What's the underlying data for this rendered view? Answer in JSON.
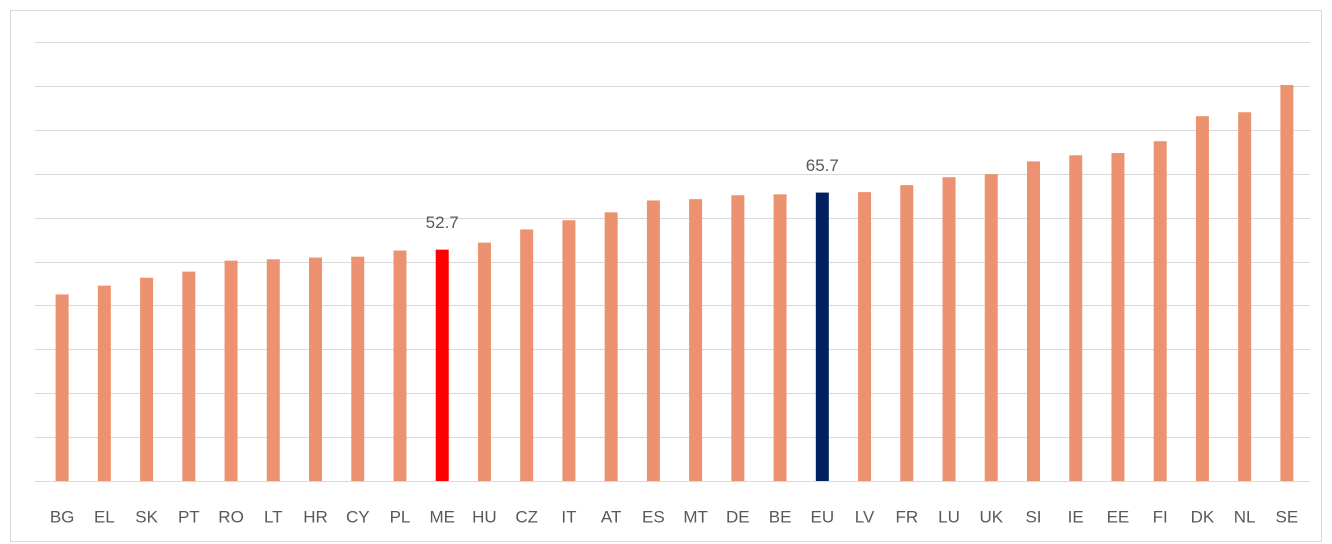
{
  "chart_data": {
    "type": "bar",
    "categories": [
      "BG",
      "EL",
      "SK",
      "PT",
      "RO",
      "LT",
      "HR",
      "CY",
      "PL",
      "ME",
      "HU",
      "CZ",
      "IT",
      "AT",
      "ES",
      "MT",
      "DE",
      "BE",
      "EU",
      "LV",
      "FR",
      "LU",
      "UK",
      "SI",
      "IE",
      "EE",
      "FI",
      "DK",
      "NL",
      "SE"
    ],
    "values": [
      42.5,
      44.5,
      46.3,
      47.7,
      50.2,
      50.5,
      50.9,
      51.1,
      52.5,
      52.7,
      54.3,
      57.3,
      59.4,
      61.2,
      63.9,
      64.2,
      65.1,
      65.3,
      65.7,
      65.8,
      67.4,
      69.2,
      69.9,
      72.8,
      74.2,
      74.7,
      77.4,
      83.1,
      84.0,
      90.2
    ],
    "value_labels": [
      null,
      null,
      null,
      null,
      null,
      null,
      null,
      null,
      null,
      "52.7",
      null,
      null,
      null,
      null,
      null,
      null,
      null,
      null,
      "65.7",
      null,
      null,
      null,
      null,
      null,
      null,
      null,
      null,
      null,
      null,
      null
    ],
    "colors": [
      "#ed9270",
      "#ed9270",
      "#ed9270",
      "#ed9270",
      "#ed9270",
      "#ed9270",
      "#ed9270",
      "#ed9270",
      "#ed9270",
      "#ff0000",
      "#ed9270",
      "#ed9270",
      "#ed9270",
      "#ed9270",
      "#ed9270",
      "#ed9270",
      "#ed9270",
      "#ed9270",
      "#002060",
      "#ed9270",
      "#ed9270",
      "#ed9270",
      "#ed9270",
      "#ed9270",
      "#ed9270",
      "#ed9270",
      "#ed9270",
      "#ed9270",
      "#ed9270",
      "#ed9270"
    ],
    "ylim": [
      0,
      100
    ],
    "yticks": [
      0,
      10,
      20,
      30,
      40,
      50,
      60,
      70,
      80,
      90,
      100
    ],
    "grid": true
  }
}
